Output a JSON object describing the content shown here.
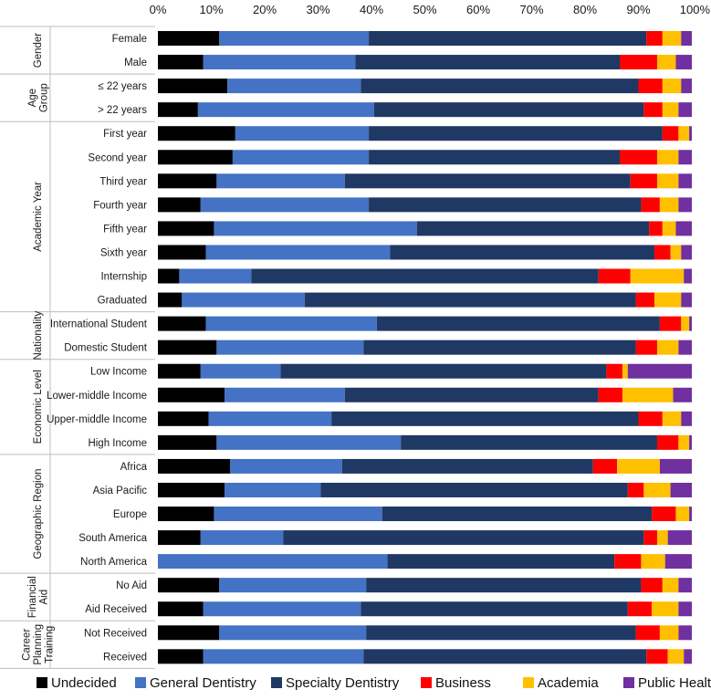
{
  "chart_data": {
    "type": "bar",
    "orientation": "horizontal",
    "stacked": "percent",
    "title": "",
    "xlabel": "",
    "ylabel": "",
    "xlim": [
      0,
      100
    ],
    "x_ticks": [
      "0%",
      "10%",
      "20%",
      "30%",
      "40%",
      "50%",
      "60%",
      "70%",
      "80%",
      "90%",
      "100%"
    ],
    "x_axis_position": "top",
    "grid": false,
    "legend_position": "bottom",
    "series": [
      {
        "name": "Undecided",
        "color": "#000000"
      },
      {
        "name": "General Dentistry",
        "color": "#4472c4"
      },
      {
        "name": "Specialty Dentistry",
        "color": "#203864"
      },
      {
        "name": "Business",
        "color": "#ff0000"
      },
      {
        "name": "Academia",
        "color": "#ffc000"
      },
      {
        "name": "Public Health",
        "color": "#7030a0"
      }
    ],
    "groups": [
      {
        "name": "Gender",
        "rows": [
          {
            "label": "Female",
            "values": [
              11.5,
              28.0,
              52.0,
              3.0,
              3.5,
              2.0
            ]
          },
          {
            "label": "Male",
            "values": [
              8.5,
              28.5,
              49.5,
              7.0,
              3.5,
              3.0
            ]
          }
        ]
      },
      {
        "name": "Age Group",
        "rows": [
          {
            "label": "≤ 22 years",
            "values": [
              13.0,
              25.0,
              52.0,
              4.5,
              3.5,
              2.0
            ]
          },
          {
            "label": "> 22 years",
            "values": [
              7.5,
              33.0,
              50.5,
              3.5,
              3.0,
              2.5
            ]
          }
        ]
      },
      {
        "name": "Academic Year",
        "rows": [
          {
            "label": "First year",
            "values": [
              14.5,
              25.0,
              55.0,
              3.0,
              2.0,
              0.5
            ]
          },
          {
            "label": "Second year",
            "values": [
              14.0,
              25.5,
              47.0,
              7.0,
              4.0,
              2.5
            ]
          },
          {
            "label": "Third year",
            "values": [
              11.0,
              24.0,
              53.5,
              5.0,
              4.0,
              2.5
            ]
          },
          {
            "label": "Fourth year",
            "values": [
              8.0,
              31.5,
              51.0,
              3.5,
              3.5,
              2.5
            ]
          },
          {
            "label": "Fifth year",
            "values": [
              10.5,
              38.0,
              43.5,
              2.5,
              2.5,
              3.0
            ]
          },
          {
            "label": "Sixth year",
            "values": [
              9.0,
              34.5,
              49.5,
              3.0,
              2.0,
              2.0
            ]
          },
          {
            "label": "Internship",
            "values": [
              4.0,
              13.5,
              65.0,
              6.0,
              10.0,
              1.5
            ]
          },
          {
            "label": "Graduated",
            "values": [
              4.5,
              23.0,
              62.0,
              3.5,
              5.0,
              2.0
            ]
          }
        ]
      },
      {
        "name": "Nationality",
        "rows": [
          {
            "label": "International Student",
            "values": [
              9.0,
              32.0,
              53.0,
              4.0,
              1.5,
              0.5
            ]
          },
          {
            "label": "Domestic Student",
            "values": [
              11.0,
              27.5,
              51.0,
              4.0,
              4.0,
              2.5
            ]
          }
        ]
      },
      {
        "name": "Economic Level",
        "rows": [
          {
            "label": "Low Income",
            "values": [
              8.0,
              15.0,
              61.0,
              3.0,
              1.0,
              12.0
            ]
          },
          {
            "label": "Lower-middle Income",
            "values": [
              12.5,
              22.5,
              47.5,
              4.5,
              9.5,
              3.5
            ]
          },
          {
            "label": "Upper-middle Income",
            "values": [
              9.5,
              23.0,
              57.5,
              4.5,
              3.5,
              2.0
            ]
          },
          {
            "label": "High Income",
            "values": [
              11.0,
              34.5,
              48.0,
              4.0,
              2.0,
              0.5
            ]
          }
        ]
      },
      {
        "name": "Geographic Region",
        "rows": [
          {
            "label": "Africa",
            "values": [
              13.5,
              21.0,
              47.0,
              4.5,
              8.0,
              6.0
            ]
          },
          {
            "label": "Asia Pacific",
            "values": [
              12.5,
              18.0,
              57.5,
              3.0,
              5.0,
              4.0
            ]
          },
          {
            "label": "Europe",
            "values": [
              10.5,
              31.5,
              50.5,
              4.5,
              2.5,
              0.5
            ]
          },
          {
            "label": "South America",
            "values": [
              8.0,
              15.5,
              67.5,
              2.5,
              2.0,
              4.5
            ]
          },
          {
            "label": "North America",
            "values": [
              0.0,
              43.0,
              42.5,
              5.0,
              4.5,
              5.0
            ]
          }
        ]
      },
      {
        "name": "Financial Aid",
        "rows": [
          {
            "label": "No Aid",
            "values": [
              11.5,
              27.5,
              51.5,
              4.0,
              3.0,
              2.5
            ]
          },
          {
            "label": "Aid Received",
            "values": [
              8.5,
              29.5,
              50.0,
              4.5,
              5.0,
              2.5
            ]
          }
        ]
      },
      {
        "name": "Career Planning Training",
        "rows": [
          {
            "label": "Not Received",
            "values": [
              11.5,
              27.5,
              50.5,
              4.5,
              3.5,
              2.5
            ]
          },
          {
            "label": "Received",
            "values": [
              8.5,
              30.0,
              53.0,
              4.0,
              3.0,
              1.5
            ]
          }
        ]
      }
    ]
  }
}
